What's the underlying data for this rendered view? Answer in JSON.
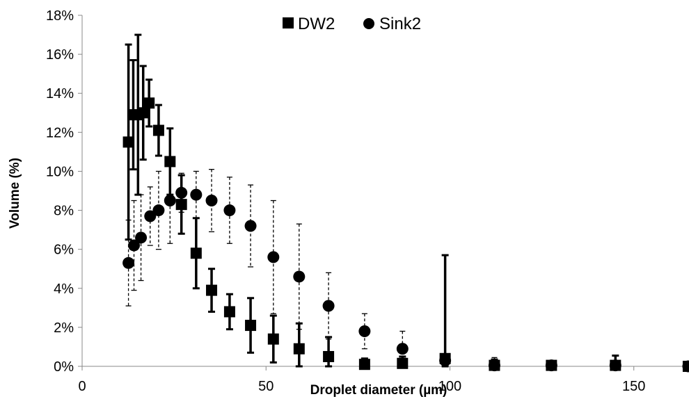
{
  "chart_data": {
    "type": "scatter",
    "xlabel": "Droplet diameter (µm)",
    "ylabel": "Volume (%)",
    "xlim": [
      0,
      165
    ],
    "ylim": [
      0,
      18
    ],
    "x_ticks": [
      "0",
      "50",
      "100",
      "150"
    ],
    "y_ticks": [
      "0%",
      "2%",
      "4%",
      "6%",
      "8%",
      "10%",
      "12%",
      "14%",
      "16%",
      "18%"
    ],
    "legend": "top-center",
    "grid": false,
    "series": [
      {
        "name": "DW2",
        "marker": "square",
        "error_style": "solid",
        "color": "#000000",
        "points": [
          {
            "x": 12.6,
            "y": 11.5,
            "err": 5.0
          },
          {
            "x": 13.9,
            "y": 12.9,
            "err": 2.8
          },
          {
            "x": 15.2,
            "y": 12.9,
            "err": 4.1
          },
          {
            "x": 16.6,
            "y": 13.0,
            "err": 2.4
          },
          {
            "x": 18.2,
            "y": 13.5,
            "err": 1.2
          },
          {
            "x": 20.8,
            "y": 12.1,
            "err": 1.3
          },
          {
            "x": 23.9,
            "y": 10.5,
            "err": 1.7
          },
          {
            "x": 27.0,
            "y": 8.3,
            "err": 1.5
          },
          {
            "x": 31.0,
            "y": 5.8,
            "err": 1.8
          },
          {
            "x": 35.2,
            "y": 3.9,
            "err": 1.1
          },
          {
            "x": 40.1,
            "y": 2.8,
            "err": 0.9
          },
          {
            "x": 45.8,
            "y": 2.1,
            "err": 1.4
          },
          {
            "x": 52.0,
            "y": 1.4,
            "err": 1.2
          },
          {
            "x": 59.0,
            "y": 0.9,
            "err": 1.3
          },
          {
            "x": 67.0,
            "y": 0.5,
            "err": 1.0
          },
          {
            "x": 76.8,
            "y": 0.1,
            "err": 0.3
          },
          {
            "x": 87.1,
            "y": 0.15,
            "err": 0.35
          },
          {
            "x": 98.7,
            "y": 0.4,
            "err": 5.3
          },
          {
            "x": 112.1,
            "y": 0.05,
            "err": 0.3
          },
          {
            "x": 127.6,
            "y": 0.05,
            "err": 0.2
          },
          {
            "x": 145.0,
            "y": 0.05,
            "err": 0.5
          },
          {
            "x": 164.8,
            "y": 0.0,
            "err": 0.1
          }
        ]
      },
      {
        "name": "Sink2",
        "marker": "circle",
        "error_style": "dashed",
        "color": "#000000",
        "points": [
          {
            "x": 12.6,
            "y": 5.3,
            "err": 2.2
          },
          {
            "x": 14.1,
            "y": 6.2,
            "err": 2.3
          },
          {
            "x": 16.0,
            "y": 6.6,
            "err": 2.2
          },
          {
            "x": 18.5,
            "y": 7.7,
            "err": 1.5
          },
          {
            "x": 20.8,
            "y": 8.0,
            "err": 2.0
          },
          {
            "x": 23.9,
            "y": 8.5,
            "err": 2.2
          },
          {
            "x": 27.0,
            "y": 8.9,
            "err": 1.0
          },
          {
            "x": 31.0,
            "y": 8.8,
            "err": 1.2
          },
          {
            "x": 35.2,
            "y": 8.5,
            "err": 1.6
          },
          {
            "x": 40.1,
            "y": 8.0,
            "err": 1.7
          },
          {
            "x": 45.8,
            "y": 7.2,
            "err": 2.1
          },
          {
            "x": 52.0,
            "y": 5.6,
            "err": 2.9
          },
          {
            "x": 59.0,
            "y": 4.6,
            "err": 2.7
          },
          {
            "x": 67.0,
            "y": 3.1,
            "err": 1.7
          },
          {
            "x": 76.8,
            "y": 1.8,
            "err": 0.9
          },
          {
            "x": 87.1,
            "y": 0.9,
            "err": 0.9
          },
          {
            "x": 98.7,
            "y": 0.3,
            "err": 0.3
          },
          {
            "x": 112.1,
            "y": 0.05,
            "err": 0.4
          },
          {
            "x": 127.6,
            "y": 0.05,
            "err": 0.1
          },
          {
            "x": 145.0,
            "y": 0.05,
            "err": 0.1
          },
          {
            "x": 164.8,
            "y": 0.0,
            "err": 0.05
          }
        ]
      }
    ]
  }
}
